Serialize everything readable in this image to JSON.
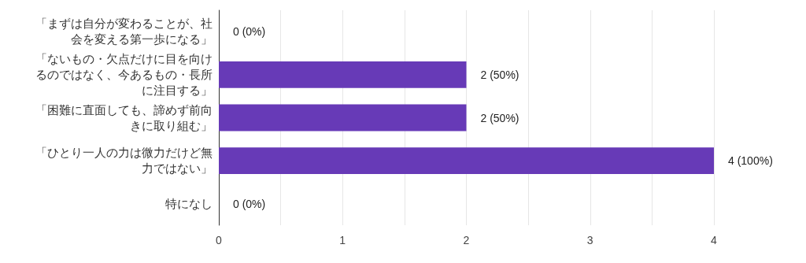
{
  "chart_data": {
    "type": "bar",
    "orientation": "horizontal",
    "categories": [
      "「まずは自分が変わることが、社会を変える第一歩になる」",
      "「ないもの・欠点だけに目を向けるのではなく、今あるもの・長所に注目する」",
      "「困難に直面しても、諦めず前向きに取り組む」",
      "「ひとり一人の力は微力だけど無力ではない」",
      "特になし"
    ],
    "values": [
      0,
      2,
      2,
      4,
      0
    ],
    "value_labels": [
      "0 (0%)",
      "2 (50%)",
      "2 (50%)",
      "4 (100%)",
      "0 (0%)"
    ],
    "color": "#673ab7",
    "xlim": [
      0,
      4
    ],
    "xticks": [
      0,
      {
        "value": 0.5,
        "label": null
      },
      1,
      {
        "value": 1.5,
        "label": null
      },
      2,
      {
        "value": 2.5,
        "label": null
      },
      3,
      {
        "value": 3.5,
        "label": null
      },
      4
    ],
    "grid": "x"
  }
}
